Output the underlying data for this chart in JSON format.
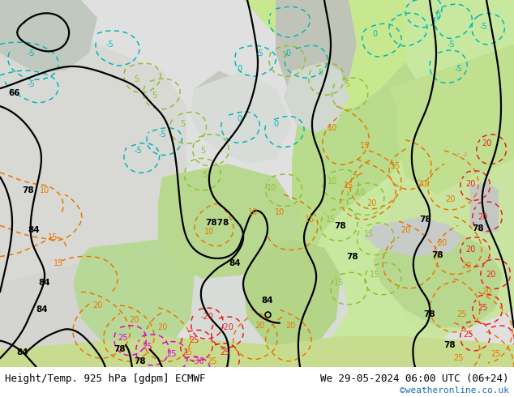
{
  "title_left": "Height/Temp. 925 hPa [gdpm] ECMWF",
  "title_right": "We 29-05-2024 06:00 UTC (06+24)",
  "watermark": "©weatheronline.co.uk",
  "fig_width": 6.34,
  "fig_height": 4.9,
  "dpi": 100,
  "bottom_bar_color": "#ffffff",
  "title_left_color": "#000000",
  "title_right_color": "#000000",
  "watermark_color": "#1a6eb5",
  "title_fontsize": 9.0,
  "watermark_fontsize": 8.0,
  "map_region": [
    0,
    0.075,
    1.0,
    0.925
  ],
  "bg_color_main": "#c8e6a0",
  "bg_color_ocean": "#e8e8e8",
  "bg_color_north": "#d8e8d0",
  "black_lw": 1.6,
  "orange_lw": 1.1,
  "cyan_lw": 1.1,
  "green_lw": 1.1,
  "red_lw": 1.1,
  "magenta_lw": 1.1,
  "dash_pattern": [
    4,
    3
  ]
}
